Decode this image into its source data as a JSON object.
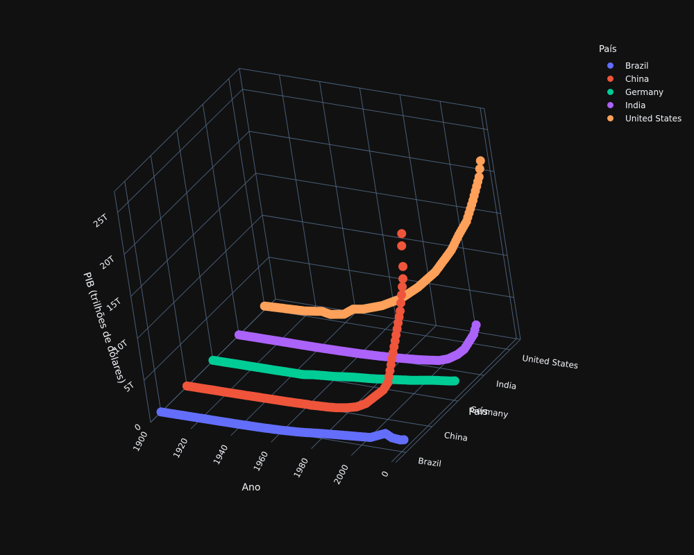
{
  "chart_data": {
    "type": "scatter",
    "projection": "3d",
    "title": "",
    "xlabel": "Ano",
    "ylabel": "País",
    "zlabel": "PIB (trilhões de dólares)",
    "x_ticks": [
      "1900",
      "1920",
      "1940",
      "1960",
      "1980",
      "2000",
      "0"
    ],
    "y_ticks": [
      "Brazil",
      "China",
      "Germany",
      "India",
      "United States"
    ],
    "z_ticks": [
      "0",
      "5T",
      "10T",
      "15T",
      "20T",
      "25T"
    ],
    "xlim": [
      1900,
      2022
    ],
    "zlim": [
      0,
      27
    ],
    "grid": true,
    "legend": {
      "title": "País",
      "placement": "top-right"
    },
    "series": [
      {
        "name": "Brazil",
        "color": "#636efa",
        "x": [
          1900,
          1910,
          1920,
          1930,
          1940,
          1950,
          1960,
          1970,
          1980,
          1990,
          2000,
          2005,
          2010,
          2013,
          2016,
          2020,
          2022
        ],
        "z": [
          0.02,
          0.03,
          0.05,
          0.06,
          0.08,
          0.12,
          0.2,
          0.35,
          0.6,
          0.8,
          1.0,
          1.1,
          1.6,
          1.9,
          1.5,
          1.4,
          1.5
        ]
      },
      {
        "name": "China",
        "color": "#ef553b",
        "x": [
          1900,
          1901,
          1913,
          1914,
          1929,
          1930,
          1931,
          1932,
          1950,
          1952,
          1955,
          1958,
          1960,
          1962,
          1965,
          1970,
          1975,
          1980,
          1985,
          1990,
          1995,
          2000,
          2003,
          2005,
          2007,
          2009,
          2011,
          2013,
          2015,
          2017,
          2019,
          2020,
          2021,
          2022
        ],
        "z": [
          0.05,
          0.05,
          0.07,
          0.07,
          0.09,
          0.09,
          0.1,
          0.1,
          0.15,
          0.16,
          0.18,
          0.2,
          0.22,
          0.2,
          0.25,
          0.3,
          0.4,
          0.6,
          0.9,
          1.5,
          2.5,
          3.5,
          4.5,
          6.0,
          7.5,
          9.0,
          10.5,
          12.0,
          13.5,
          15.5,
          17.5,
          19.0,
          21.5,
          23.0
        ]
      },
      {
        "name": "Germany",
        "color": "#00cc96",
        "x": [
          1900,
          1910,
          1920,
          1930,
          1940,
          1945,
          1950,
          1960,
          1970,
          1980,
          1990,
          2000,
          2010,
          2020,
          2022
        ],
        "z": [
          0.05,
          0.07,
          0.08,
          0.09,
          0.12,
          0.12,
          0.3,
          0.5,
          0.8,
          1.0,
          1.3,
          1.6,
          2.0,
          2.3,
          2.4
        ]
      },
      {
        "name": "India",
        "color": "#ab63fa",
        "x": [
          1900,
          1910,
          1920,
          1930,
          1940,
          1950,
          1960,
          1970,
          1980,
          1990,
          2000,
          2005,
          2010,
          2014,
          2017,
          2020,
          2022
        ],
        "z": [
          0.03,
          0.04,
          0.05,
          0.05,
          0.06,
          0.1,
          0.15,
          0.25,
          0.4,
          0.6,
          0.9,
          1.3,
          2.0,
          2.8,
          3.8,
          4.8,
          6.0
        ]
      },
      {
        "name": "United States",
        "color": "#ffa15a",
        "x": [
          1900,
          1910,
          1920,
          1929,
          1933,
          1940,
          1945,
          1950,
          1960,
          1970,
          1980,
          1990,
          2000,
          2005,
          2010,
          2015,
          2020,
          2022
        ],
        "z": [
          0.4,
          0.5,
          0.6,
          0.9,
          0.7,
          1.0,
          1.8,
          2.0,
          2.8,
          4.0,
          5.8,
          8.0,
          11.0,
          13.0,
          14.8,
          17.5,
          20.5,
          22.5
        ]
      }
    ]
  }
}
